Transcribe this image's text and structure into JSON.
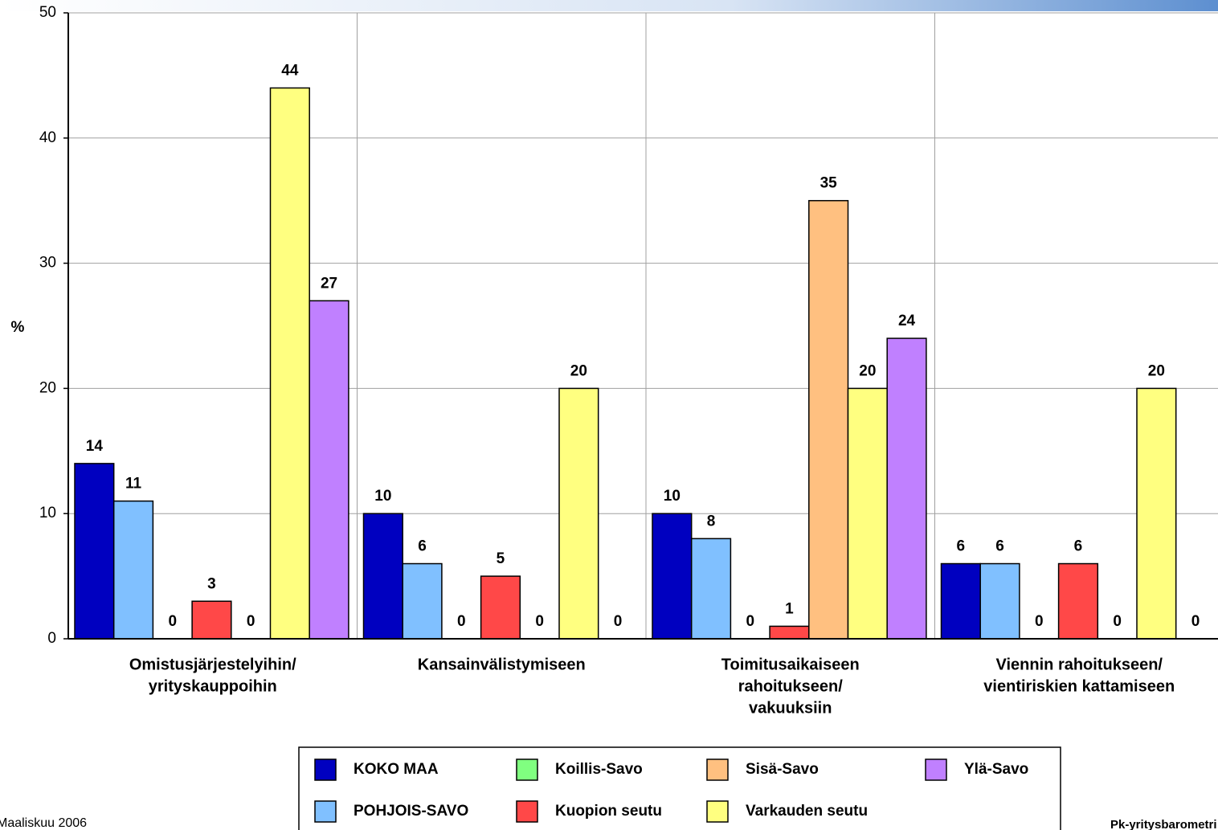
{
  "chart_data": {
    "type": "bar",
    "y_label": "%",
    "categories": [
      [
        "Omistusjärjestelyihin/",
        "yrityskauppoihin"
      ],
      [
        "Kansainvälistymiseen"
      ],
      [
        "Toimitusaikaiseen",
        "rahoitukseen/",
        "vakuuksiin"
      ],
      [
        "Viennin rahoitukseen/",
        "vientiriskien kattamiseen"
      ]
    ],
    "series": [
      {
        "name": "KOKO MAA",
        "color": "#0000c0",
        "values": [
          14,
          10,
          10,
          6
        ]
      },
      {
        "name": "POHJOIS-SAVO",
        "color": "#80c0ff",
        "values": [
          11,
          6,
          8,
          6
        ]
      },
      {
        "name": "Koillis-Savo",
        "color": "#80ff80",
        "values": [
          0,
          0,
          0,
          0
        ]
      },
      {
        "name": "Kuopion seutu",
        "color": "#ff4848",
        "values": [
          3,
          5,
          1,
          6
        ]
      },
      {
        "name": "Sisä-Savo",
        "color": "#ffc080",
        "values": [
          0,
          0,
          35,
          0
        ]
      },
      {
        "name": "Varkauden seutu",
        "color": "#ffff80",
        "values": [
          44,
          20,
          20,
          20
        ]
      },
      {
        "name": "Ylä-Savo",
        "color": "#c080ff",
        "values": [
          27,
          0,
          24,
          0
        ]
      }
    ],
    "ylim": [
      0,
      50
    ],
    "yticks": [
      0,
      10,
      20,
      30,
      40,
      50
    ],
    "grid": true,
    "legend": "bottom",
    "footer_left": "Maaliskuu 2006",
    "footer_right": "Pk-yritysbarometri"
  }
}
